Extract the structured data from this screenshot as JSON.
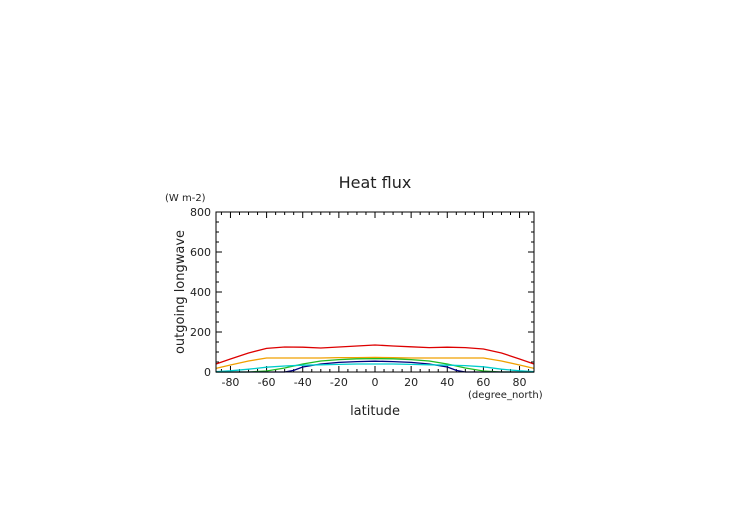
{
  "chart_data": {
    "type": "line",
    "title": "Heat flux",
    "xlabel": "latitude",
    "xunit": "(degree_north)",
    "ylabel": "outgoing longwave",
    "yunit": "(W m-2)",
    "xlim": [
      -88,
      88
    ],
    "ylim": [
      0,
      800
    ],
    "x_ticks": [
      -80,
      -60,
      -40,
      -20,
      0,
      20,
      40,
      60,
      80
    ],
    "y_ticks": [
      0,
      200,
      400,
      600,
      800
    ],
    "grid": false,
    "series": [
      {
        "color": "#dd0000",
        "x": [
          -88,
          -80,
          -70,
          -60,
          -50,
          -40,
          -30,
          -20,
          -10,
          0,
          10,
          20,
          30,
          40,
          50,
          60,
          70,
          80,
          88
        ],
        "y": [
          40,
          65,
          95,
          118,
          125,
          124,
          120,
          125,
          130,
          135,
          130,
          126,
          122,
          124,
          122,
          115,
          95,
          65,
          40
        ]
      },
      {
        "color": "#f0a000",
        "x": [
          -88,
          -80,
          -70,
          -60,
          -50,
          -40,
          -30,
          -20,
          -10,
          0,
          10,
          20,
          30,
          40,
          50,
          60,
          70,
          80,
          88
        ],
        "y": [
          18,
          35,
          55,
          70,
          70,
          70,
          70,
          72,
          72,
          73,
          72,
          70,
          70,
          70,
          70,
          70,
          55,
          35,
          18
        ]
      },
      {
        "color": "#22bb22",
        "x": [
          -88,
          -70,
          -60,
          -50,
          -40,
          -30,
          -20,
          -10,
          0,
          10,
          20,
          30,
          40,
          50,
          60,
          70,
          88
        ],
        "y": [
          0,
          0,
          5,
          20,
          40,
          55,
          62,
          66,
          67,
          66,
          62,
          55,
          40,
          20,
          5,
          0,
          0
        ]
      },
      {
        "color": "#000080",
        "x": [
          -88,
          -60,
          -50,
          -45,
          -40,
          -30,
          -20,
          -10,
          0,
          10,
          20,
          30,
          40,
          45,
          50,
          60,
          88
        ],
        "y": [
          0,
          0,
          0,
          8,
          25,
          40,
          48,
          52,
          54,
          52,
          48,
          40,
          25,
          8,
          0,
          0,
          0
        ]
      },
      {
        "color": "#00cccc",
        "x": [
          -88,
          -80,
          -70,
          -60,
          -50,
          -40,
          -30,
          -20,
          -10,
          0,
          10,
          20,
          30,
          40,
          50,
          60,
          70,
          80,
          88
        ],
        "y": [
          2,
          6,
          14,
          24,
          30,
          34,
          36,
          38,
          40,
          40,
          40,
          38,
          36,
          34,
          32,
          26,
          14,
          6,
          2
        ]
      }
    ]
  }
}
